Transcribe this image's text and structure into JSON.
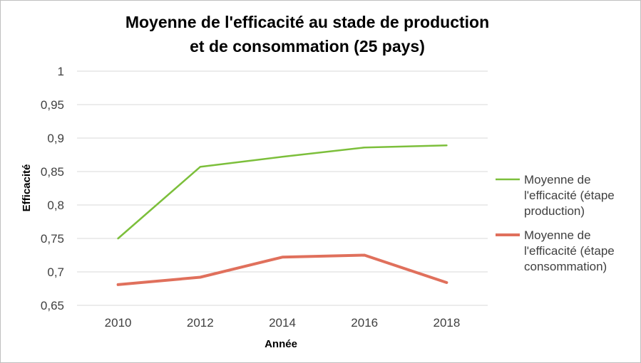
{
  "chart_data": {
    "type": "line",
    "title_lines": [
      "Moyenne de l'efficacité au stade de production",
      "et de consommation (25 pays)"
    ],
    "xlabel": "Année",
    "ylabel": "Efficacité",
    "categories": [
      "2010",
      "2012",
      "2014",
      "2016",
      "2018"
    ],
    "ylim": [
      0.65,
      1
    ],
    "y_ticks": [
      1,
      0.95,
      0.9,
      0.85,
      0.8,
      0.75,
      0.7,
      0.65
    ],
    "y_tick_labels": [
      "1",
      "0,95",
      "0,9",
      "0,85",
      "0,8",
      "0,75",
      "0,7",
      "0,65"
    ],
    "grid": true,
    "legend_position": "right",
    "series": [
      {
        "name": "Moyenne de l'efficacité (étape production)",
        "legend_lines": [
          "Moyenne de",
          "l'efficacité (étape",
          "production)"
        ],
        "color": "#7cbf3b",
        "values": [
          0.75,
          0.857,
          0.872,
          0.886,
          0.889
        ]
      },
      {
        "name": "Moyenne de l'efficacité (étape consommation)",
        "legend_lines": [
          "Moyenne de",
          "l'efficacité (étape",
          "consommation)"
        ],
        "color": "#e0705c",
        "values": [
          0.681,
          0.692,
          0.722,
          0.725,
          0.684
        ]
      }
    ]
  }
}
